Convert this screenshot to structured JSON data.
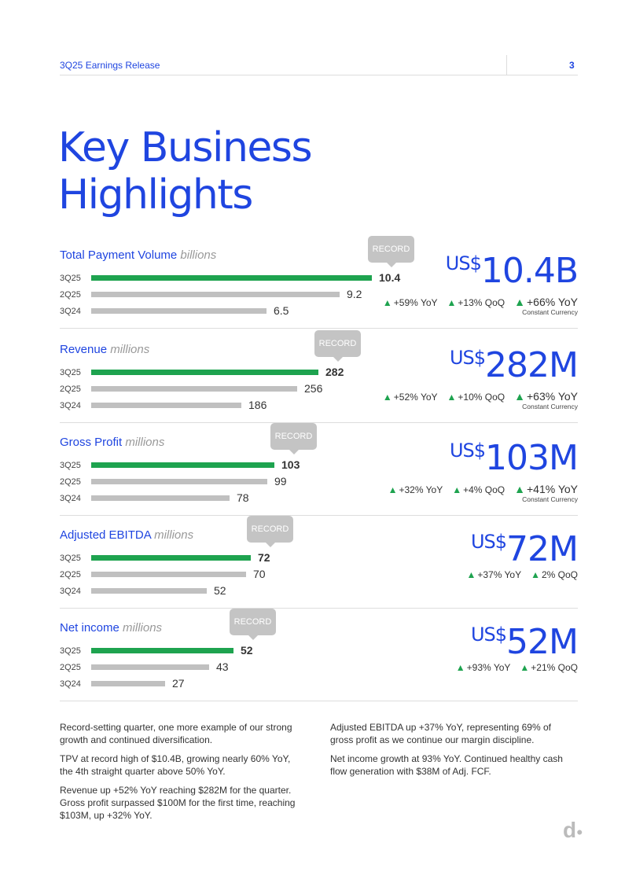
{
  "header": {
    "title": "3Q25 Earnings Release",
    "page": "3"
  },
  "page_title": {
    "line1": "Key Business",
    "line2": "Highlights"
  },
  "colors": {
    "accent": "#1f45e0",
    "current_bar": "#1ea34f",
    "prior_bar": "#c0c0c0",
    "badge": "#c4c4c4"
  },
  "badge_label": "RECORD",
  "currency_prefix": "US$",
  "sections": [
    {
      "title": "Total Payment Volume",
      "unit": "billions",
      "big": "10.4B",
      "rows": [
        {
          "label": "3Q25",
          "value": 10.4,
          "display": "10.4"
        },
        {
          "label": "2Q25",
          "value": 9.2,
          "display": "9.2"
        },
        {
          "label": "3Q24",
          "value": 6.5,
          "display": "6.5"
        }
      ],
      "changes": [
        "+59% YoY",
        "+13% QoQ"
      ],
      "cc_change": "+66% YoY",
      "cc_label": "Constant Currency"
    },
    {
      "title": "Revenue",
      "unit": "millions",
      "big": "282M",
      "rows": [
        {
          "label": "3Q25",
          "value": 282,
          "display": "282"
        },
        {
          "label": "2Q25",
          "value": 256,
          "display": "256"
        },
        {
          "label": "3Q24",
          "value": 186,
          "display": "186"
        }
      ],
      "changes": [
        "+52% YoY",
        "+10% QoQ"
      ],
      "cc_change": "+63% YoY",
      "cc_label": "Constant Currency"
    },
    {
      "title": "Gross Profit",
      "unit": "millions",
      "big": "103M",
      "rows": [
        {
          "label": "3Q25",
          "value": 103,
          "display": "103"
        },
        {
          "label": "2Q25",
          "value": 99,
          "display": "99"
        },
        {
          "label": "3Q24",
          "value": 78,
          "display": "78"
        }
      ],
      "changes": [
        "+32% YoY",
        "+4% QoQ"
      ],
      "cc_change": "+41% YoY",
      "cc_label": "Constant Currency"
    },
    {
      "title": "Adjusted EBITDA",
      "unit": "millions",
      "big": "72M",
      "rows": [
        {
          "label": "3Q25",
          "value": 72,
          "display": "72"
        },
        {
          "label": "2Q25",
          "value": 70,
          "display": "70"
        },
        {
          "label": "3Q24",
          "value": 52,
          "display": "52"
        }
      ],
      "changes": [
        "+37% YoY",
        "2% QoQ"
      ]
    },
    {
      "title": "Net income",
      "unit": "millions",
      "big": "52M",
      "rows": [
        {
          "label": "3Q25",
          "value": 52,
          "display": "52"
        },
        {
          "label": "2Q25",
          "value": 43,
          "display": "43"
        },
        {
          "label": "3Q24",
          "value": 27,
          "display": "27"
        }
      ],
      "changes": [
        "+93% YoY",
        "+21% QoQ"
      ]
    }
  ],
  "text_left": [
    "Record-setting quarter, one more example of our strong growth and continued diversification.",
    "TPV at record high of $10.4B, growing nearly 60% YoY, the 4th straight quarter above 50% YoY.",
    "Revenue up +52% YoY reaching $282M for the quarter. Gross profit surpassed $100M for the first time, reaching $103M, up +32% YoY."
  ],
  "text_right": [
    "Adjusted EBITDA up +37% YoY, representing 69% of gross profit as we continue our margin discipline.",
    "Net income growth at 93% YoY. Continued healthy cash flow generation with $38M of Adj. FCF."
  ],
  "logo": "d·"
}
